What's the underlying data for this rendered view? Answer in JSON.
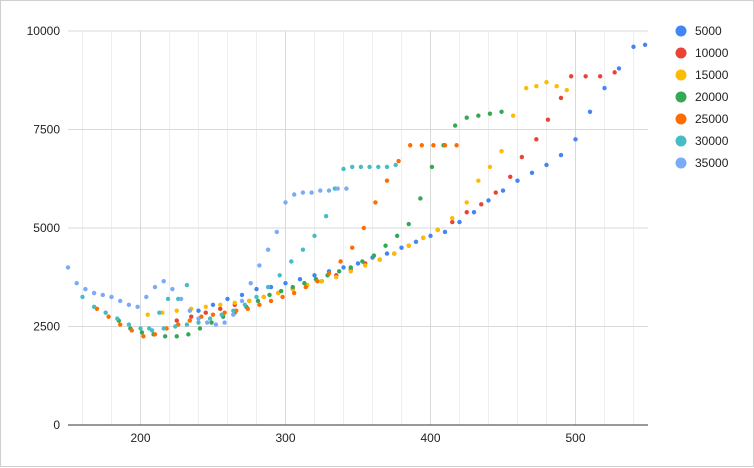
{
  "chart_data": {
    "type": "scatter",
    "title": "",
    "xlabel": "",
    "ylabel": "",
    "xlim": [
      150,
      550
    ],
    "ylim": [
      0,
      10000
    ],
    "x_ticks": [
      200,
      300,
      400,
      500
    ],
    "y_ticks": [
      0,
      2500,
      5000,
      7500,
      10000
    ],
    "x_tick_labels": [
      "200",
      "300",
      "400",
      "500"
    ],
    "y_tick_labels": [
      "0",
      "2500",
      "5000",
      "7500",
      "10000"
    ],
    "grid": true,
    "legend_position": "right",
    "series": [
      {
        "name": "5000",
        "color": "#4285f4",
        "points": [
          [
            240,
            2900
          ],
          [
            250,
            3050
          ],
          [
            260,
            3200
          ],
          [
            270,
            3300
          ],
          [
            280,
            3450
          ],
          [
            290,
            3500
          ],
          [
            300,
            3600
          ],
          [
            310,
            3700
          ],
          [
            320,
            3800
          ],
          [
            330,
            3900
          ],
          [
            340,
            4000
          ],
          [
            350,
            4100
          ],
          [
            360,
            4250
          ],
          [
            370,
            4350
          ],
          [
            380,
            4500
          ],
          [
            390,
            4650
          ],
          [
            400,
            4800
          ],
          [
            410,
            4900
          ],
          [
            420,
            5150
          ],
          [
            430,
            5400
          ],
          [
            440,
            5700
          ],
          [
            450,
            5950
          ],
          [
            460,
            6200
          ],
          [
            470,
            6400
          ],
          [
            480,
            6600
          ],
          [
            490,
            6850
          ],
          [
            500,
            7250
          ],
          [
            510,
            7950
          ],
          [
            520,
            8550
          ],
          [
            530,
            9050
          ],
          [
            540,
            9600
          ],
          [
            548,
            9650
          ]
        ]
      },
      {
        "name": "10000",
        "color": "#ea4335",
        "points": [
          [
            225,
            2650
          ],
          [
            235,
            2750
          ],
          [
            245,
            2850
          ],
          [
            255,
            2950
          ],
          [
            265,
            3050
          ],
          [
            275,
            3150
          ],
          [
            285,
            3250
          ],
          [
            295,
            3350
          ],
          [
            305,
            3450
          ],
          [
            315,
            3550
          ],
          [
            325,
            3650
          ],
          [
            335,
            3800
          ],
          [
            345,
            3950
          ],
          [
            355,
            4100
          ],
          [
            365,
            4200
          ],
          [
            375,
            4350
          ],
          [
            385,
            4550
          ],
          [
            395,
            4750
          ],
          [
            405,
            4950
          ],
          [
            415,
            5150
          ],
          [
            425,
            5400
          ],
          [
            435,
            5600
          ],
          [
            445,
            5900
          ],
          [
            455,
            6300
          ],
          [
            463,
            6800
          ],
          [
            473,
            7250
          ],
          [
            481,
            7750
          ],
          [
            490,
            8300
          ],
          [
            497,
            8850
          ],
          [
            507,
            8850
          ],
          [
            517,
            8850
          ],
          [
            527,
            8950
          ]
        ]
      },
      {
        "name": "15000",
        "color": "#fbbc04",
        "points": [
          [
            205,
            2800
          ],
          [
            215,
            2850
          ],
          [
            225,
            2900
          ],
          [
            235,
            2950
          ],
          [
            245,
            3000
          ],
          [
            255,
            3050
          ],
          [
            265,
            3100
          ],
          [
            275,
            3150
          ],
          [
            285,
            3250
          ],
          [
            295,
            3350
          ],
          [
            305,
            3450
          ],
          [
            315,
            3550
          ],
          [
            325,
            3650
          ],
          [
            335,
            3750
          ],
          [
            345,
            3900
          ],
          [
            355,
            4050
          ],
          [
            365,
            4200
          ],
          [
            375,
            4350
          ],
          [
            385,
            4550
          ],
          [
            395,
            4750
          ],
          [
            405,
            4950
          ],
          [
            415,
            5250
          ],
          [
            425,
            5650
          ],
          [
            433,
            6200
          ],
          [
            441,
            6550
          ],
          [
            449,
            6950
          ],
          [
            457,
            7850
          ],
          [
            466,
            8550
          ],
          [
            473,
            8600
          ],
          [
            480,
            8700
          ],
          [
            487,
            8600
          ],
          [
            494,
            8500
          ]
        ]
      },
      {
        "name": "20000",
        "color": "#34a853",
        "points": [
          [
            185,
            2650
          ],
          [
            193,
            2450
          ],
          [
            201,
            2350
          ],
          [
            209,
            2300
          ],
          [
            217,
            2250
          ],
          [
            225,
            2250
          ],
          [
            233,
            2300
          ],
          [
            241,
            2450
          ],
          [
            249,
            2600
          ],
          [
            257,
            2750
          ],
          [
            265,
            2850
          ],
          [
            273,
            3000
          ],
          [
            281,
            3150
          ],
          [
            289,
            3300
          ],
          [
            297,
            3400
          ],
          [
            305,
            3500
          ],
          [
            313,
            3600
          ],
          [
            321,
            3700
          ],
          [
            329,
            3800
          ],
          [
            337,
            3900
          ],
          [
            345,
            4000
          ],
          [
            353,
            4150
          ],
          [
            361,
            4300
          ],
          [
            369,
            4550
          ],
          [
            377,
            4800
          ],
          [
            385,
            5100
          ],
          [
            393,
            5750
          ],
          [
            401,
            6550
          ],
          [
            409,
            7100
          ],
          [
            417,
            7600
          ],
          [
            425,
            7800
          ],
          [
            433,
            7850
          ],
          [
            441,
            7900
          ],
          [
            449,
            7950
          ]
        ]
      },
      {
        "name": "25000",
        "color": "#ff6d01",
        "points": [
          [
            170,
            2950
          ],
          [
            178,
            2750
          ],
          [
            186,
            2550
          ],
          [
            194,
            2400
          ],
          [
            202,
            2250
          ],
          [
            210,
            2300
          ],
          [
            218,
            2450
          ],
          [
            226,
            2550
          ],
          [
            234,
            2650
          ],
          [
            242,
            2750
          ],
          [
            250,
            2800
          ],
          [
            258,
            2850
          ],
          [
            266,
            2900
          ],
          [
            274,
            2950
          ],
          [
            282,
            3050
          ],
          [
            290,
            3150
          ],
          [
            298,
            3250
          ],
          [
            306,
            3350
          ],
          [
            314,
            3500
          ],
          [
            322,
            3650
          ],
          [
            330,
            3850
          ],
          [
            338,
            4150
          ],
          [
            346,
            4500
          ],
          [
            354,
            5000
          ],
          [
            362,
            5650
          ],
          [
            370,
            6200
          ],
          [
            378,
            6700
          ],
          [
            386,
            7100
          ],
          [
            394,
            7100
          ],
          [
            402,
            7100
          ],
          [
            410,
            7100
          ],
          [
            418,
            7100
          ]
        ]
      },
      {
        "name": "30000",
        "color": "#46bdc6",
        "points": [
          [
            160,
            3250
          ],
          [
            168,
            3000
          ],
          [
            176,
            2850
          ],
          [
            184,
            2700
          ],
          [
            192,
            2550
          ],
          [
            200,
            2450
          ],
          [
            208,
            2400
          ],
          [
            216,
            2450
          ],
          [
            224,
            2500
          ],
          [
            232,
            2550
          ],
          [
            240,
            2600
          ],
          [
            248,
            2700
          ],
          [
            256,
            2800
          ],
          [
            264,
            2900
          ],
          [
            272,
            3050
          ],
          [
            280,
            3250
          ],
          [
            288,
            3500
          ],
          [
            296,
            3800
          ],
          [
            304,
            4150
          ],
          [
            312,
            4450
          ],
          [
            320,
            4800
          ],
          [
            328,
            5300
          ],
          [
            334,
            6000
          ],
          [
            340,
            6500
          ],
          [
            346,
            6550
          ],
          [
            352,
            6550
          ],
          [
            358,
            6550
          ],
          [
            364,
            6550
          ],
          [
            370,
            6550
          ],
          [
            376,
            6600
          ],
          [
            226,
            3200
          ],
          [
            232,
            3550
          ],
          [
            206,
            2450
          ],
          [
            213,
            2850
          ],
          [
            219,
            3200
          ]
        ]
      },
      {
        "name": "35000",
        "color": "#7baaf7",
        "points": [
          [
            150,
            4000
          ],
          [
            156,
            3600
          ],
          [
            162,
            3450
          ],
          [
            168,
            3350
          ],
          [
            174,
            3300
          ],
          [
            180,
            3250
          ],
          [
            186,
            3150
          ],
          [
            192,
            3050
          ],
          [
            198,
            3000
          ],
          [
            204,
            3250
          ],
          [
            210,
            3500
          ],
          [
            216,
            3650
          ],
          [
            222,
            3450
          ],
          [
            228,
            3200
          ],
          [
            234,
            2900
          ],
          [
            240,
            2700
          ],
          [
            246,
            2600
          ],
          [
            252,
            2550
          ],
          [
            258,
            2600
          ],
          [
            264,
            2800
          ],
          [
            270,
            3150
          ],
          [
            276,
            3600
          ],
          [
            282,
            4050
          ],
          [
            288,
            4450
          ],
          [
            294,
            4900
          ],
          [
            300,
            5650
          ],
          [
            306,
            5850
          ],
          [
            312,
            5900
          ],
          [
            318,
            5900
          ],
          [
            324,
            5950
          ],
          [
            330,
            5950
          ],
          [
            336,
            6000
          ],
          [
            342,
            6000
          ]
        ]
      }
    ]
  }
}
